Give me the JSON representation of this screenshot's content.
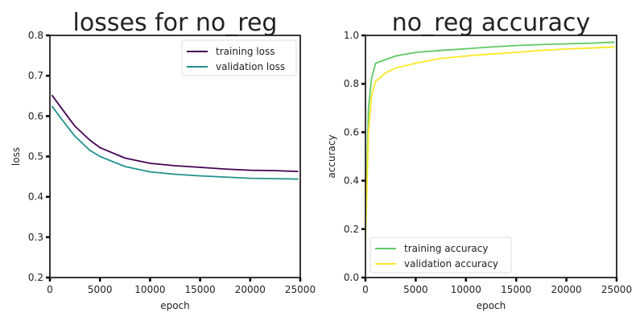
{
  "chart_data": [
    {
      "type": "line",
      "title": "losses for no_reg",
      "xlabel": "epoch",
      "ylabel": "loss",
      "xlim": [
        0,
        25000
      ],
      "ylim": [
        0.2,
        0.8
      ],
      "xticks": [
        "0",
        "5000",
        "10000",
        "15000",
        "20000",
        "25000"
      ],
      "yticks": [
        "0.2",
        "0.3",
        "0.4",
        "0.5",
        "0.6",
        "0.7",
        "0.8"
      ],
      "grid": false,
      "legend": "top-right",
      "x": [
        200,
        1000,
        2500,
        4000,
        5000,
        7500,
        10000,
        12500,
        15000,
        17500,
        20000,
        22500,
        24800
      ],
      "series": [
        {
          "name": "training loss",
          "color": "#440154",
          "values": [
            0.652,
            0.625,
            0.575,
            0.54,
            0.522,
            0.496,
            0.483,
            0.477,
            0.473,
            0.469,
            0.466,
            0.465,
            0.463
          ]
        },
        {
          "name": "validation loss",
          "color": "#21918c",
          "values": [
            0.625,
            0.598,
            0.55,
            0.515,
            0.5,
            0.475,
            0.462,
            0.456,
            0.452,
            0.449,
            0.446,
            0.445,
            0.444
          ]
        }
      ]
    },
    {
      "type": "line",
      "title": "no_reg accuracy",
      "xlabel": "epoch",
      "ylabel": "accuracy",
      "xlim": [
        0,
        25000
      ],
      "ylim": [
        0.0,
        1.0
      ],
      "xticks": [
        "0",
        "5000",
        "10000",
        "15000",
        "20000",
        "25000"
      ],
      "yticks": [
        "0.0",
        "0.2",
        "0.4",
        "0.6",
        "0.8",
        "1.0"
      ],
      "grid": false,
      "legend": "bottom-left",
      "x": [
        0,
        300,
        600,
        1000,
        2000,
        3000,
        5000,
        7500,
        10000,
        12500,
        15000,
        17500,
        20000,
        22500,
        24800
      ],
      "series": [
        {
          "name": "training accuracy",
          "color": "#5ec962",
          "values": [
            0.2,
            0.7,
            0.82,
            0.885,
            0.9,
            0.915,
            0.93,
            0.938,
            0.945,
            0.952,
            0.958,
            0.962,
            0.965,
            0.968,
            0.972
          ]
        },
        {
          "name": "validation accuracy",
          "color": "#fde725",
          "values": [
            0.15,
            0.6,
            0.75,
            0.81,
            0.845,
            0.865,
            0.885,
            0.905,
            0.915,
            0.923,
            0.93,
            0.938,
            0.944,
            0.948,
            0.952
          ]
        }
      ]
    }
  ]
}
